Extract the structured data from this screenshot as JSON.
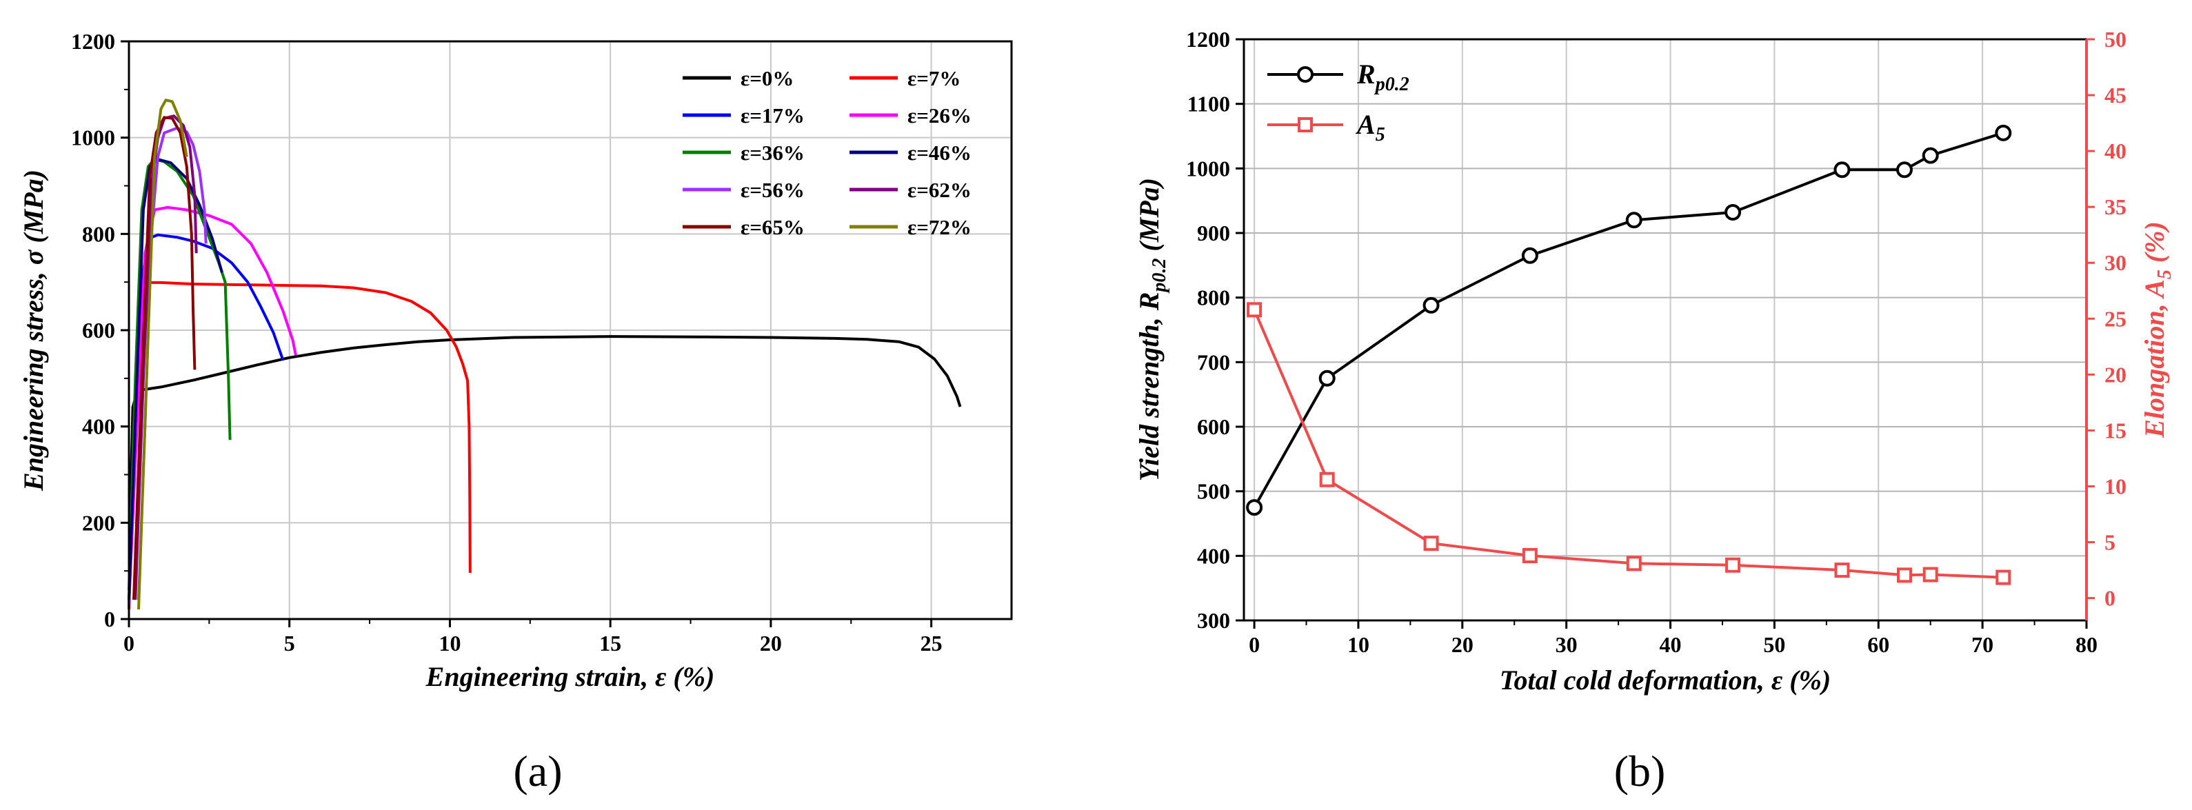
{
  "chart_data": [
    {
      "panel": "a",
      "panel_label": "(a)",
      "type": "line",
      "title": "",
      "xlabel": "Engineering strain, ε (%)",
      "ylabel": "Engineering stress, σ (MPa)",
      "xlim": [
        0,
        27.5
      ],
      "ylim": [
        0,
        1200
      ],
      "xticks": [
        0,
        5,
        10,
        15,
        20,
        25
      ],
      "yticks": [
        0,
        200,
        400,
        600,
        800,
        1000,
        1200
      ],
      "grid": true,
      "legend_position": "top-right",
      "series": [
        {
          "name": "ε=0%",
          "color": "#000000",
          "points": [
            [
              0,
              20
            ],
            [
              0.05,
              250
            ],
            [
              0.12,
              440
            ],
            [
              0.25,
              470
            ],
            [
              0.4,
              476
            ],
            [
              1,
              482
            ],
            [
              2,
              496
            ],
            [
              3,
              512
            ],
            [
              4,
              528
            ],
            [
              5,
              543
            ],
            [
              6,
              554
            ],
            [
              7,
              563
            ],
            [
              8,
              570
            ],
            [
              9,
              576
            ],
            [
              10,
              580
            ],
            [
              12,
              585
            ],
            [
              15,
              587
            ],
            [
              18,
              586
            ],
            [
              20,
              585
            ],
            [
              22,
              583
            ],
            [
              23,
              581
            ],
            [
              24,
              576
            ],
            [
              24.6,
              565
            ],
            [
              25.1,
              540
            ],
            [
              25.5,
              505
            ],
            [
              25.8,
              462
            ],
            [
              25.9,
              441
            ]
          ]
        },
        {
          "name": "ε=7%",
          "color": "#ff0000",
          "points": [
            [
              0,
              20
            ],
            [
              0.15,
              400
            ],
            [
              0.3,
              640
            ],
            [
              0.5,
              699
            ],
            [
              1,
              699
            ],
            [
              2,
              696
            ],
            [
              3,
              695
            ],
            [
              4,
              694
            ],
            [
              5,
              693
            ],
            [
              6,
              692
            ],
            [
              7,
              688
            ],
            [
              8,
              678
            ],
            [
              8.8,
              660
            ],
            [
              9.4,
              636
            ],
            [
              9.9,
              600
            ],
            [
              10.2,
              565
            ],
            [
              10.4,
              530
            ],
            [
              10.55,
              495
            ],
            [
              10.6,
              400
            ],
            [
              10.62,
              250
            ],
            [
              10.63,
              96
            ]
          ]
        },
        {
          "name": "ε=17%",
          "color": "#0000ff",
          "points": [
            [
              0,
              30
            ],
            [
              0.2,
              400
            ],
            [
              0.4,
              700
            ],
            [
              0.6,
              790
            ],
            [
              0.9,
              798
            ],
            [
              1.5,
              793
            ],
            [
              2,
              785
            ],
            [
              2.6,
              770
            ],
            [
              3.2,
              740
            ],
            [
              3.7,
              700
            ],
            [
              4.1,
              650
            ],
            [
              4.5,
              595
            ],
            [
              4.8,
              538
            ]
          ]
        },
        {
          "name": "ε=26%",
          "color": "#ff00ff",
          "points": [
            [
              0,
              30
            ],
            [
              0.25,
              400
            ],
            [
              0.5,
              760
            ],
            [
              0.8,
              850
            ],
            [
              1.2,
              855
            ],
            [
              1.8,
              850
            ],
            [
              2.5,
              838
            ],
            [
              3.2,
              820
            ],
            [
              3.8,
              780
            ],
            [
              4.3,
              720
            ],
            [
              4.8,
              640
            ],
            [
              5.1,
              580
            ],
            [
              5.2,
              548
            ]
          ]
        },
        {
          "name": "ε=36%",
          "color": "#008000",
          "points": [
            [
              0,
              60
            ],
            [
              0.2,
              500
            ],
            [
              0.4,
              850
            ],
            [
              0.6,
              940
            ],
            [
              0.8,
              955
            ],
            [
              1.1,
              950
            ],
            [
              1.5,
              930
            ],
            [
              2,
              880
            ],
            [
              2.4,
              810
            ],
            [
              2.8,
              740
            ],
            [
              3.0,
              700
            ],
            [
              3.1,
              500
            ],
            [
              3.15,
              372
            ]
          ]
        },
        {
          "name": "ε=46%",
          "color": "#000080",
          "points": [
            [
              0,
              40
            ],
            [
              0.25,
              500
            ],
            [
              0.45,
              850
            ],
            [
              0.65,
              940
            ],
            [
              0.9,
              955
            ],
            [
              1.3,
              948
            ],
            [
              1.8,
              915
            ],
            [
              2.2,
              860
            ],
            [
              2.6,
              790
            ],
            [
              2.9,
              720
            ]
          ]
        },
        {
          "name": "ε=56%",
          "color": "#9b30ff",
          "points": [
            [
              0.3,
              40
            ],
            [
              0.5,
              400
            ],
            [
              0.7,
              800
            ],
            [
              0.9,
              960
            ],
            [
              1.1,
              1010
            ],
            [
              1.5,
              1020
            ],
            [
              1.8,
              1012
            ],
            [
              2.0,
              985
            ],
            [
              2.2,
              930
            ],
            [
              2.35,
              850
            ],
            [
              2.4,
              780
            ]
          ]
        },
        {
          "name": "ε=62%",
          "color": "#800080",
          "points": [
            [
              0.2,
              40
            ],
            [
              0.45,
              500
            ],
            [
              0.7,
              900
            ],
            [
              0.9,
              1000
            ],
            [
              1.1,
              1040
            ],
            [
              1.4,
              1045
            ],
            [
              1.7,
              1025
            ],
            [
              1.9,
              980
            ],
            [
              2.05,
              880
            ],
            [
              2.1,
              760
            ]
          ]
        },
        {
          "name": "ε=65%",
          "color": "#8b0000",
          "points": [
            [
              0.15,
              40
            ],
            [
              0.4,
              500
            ],
            [
              0.65,
              920
            ],
            [
              0.85,
              1010
            ],
            [
              1.1,
              1042
            ],
            [
              1.35,
              1040
            ],
            [
              1.6,
              1010
            ],
            [
              1.8,
              940
            ],
            [
              1.95,
              800
            ],
            [
              2.0,
              640
            ],
            [
              2.05,
              518
            ]
          ]
        },
        {
          "name": "ε=72%",
          "color": "#808000",
          "points": [
            [
              0.3,
              20
            ],
            [
              0.55,
              500
            ],
            [
              0.8,
              960
            ],
            [
              1.0,
              1060
            ],
            [
              1.15,
              1078
            ],
            [
              1.35,
              1075
            ],
            [
              1.6,
              1035
            ],
            [
              1.8,
              960
            ]
          ]
        }
      ]
    },
    {
      "panel": "b",
      "panel_label": "(b)",
      "type": "line",
      "title": "",
      "xlabel": "Total cold deformation, ε (%)",
      "ylabel_left": "Yield strength, R",
      "ylabel_left_sub": "p0.2",
      "ylabel_left_unit": " (MPa)",
      "ylabel_right": "Elongation, A",
      "ylabel_right_sub": "5",
      "ylabel_right_unit": " (%)",
      "xlim": [
        -1,
        80
      ],
      "ylim_left": [
        300,
        1200
      ],
      "ylim_right": [
        -2,
        50
      ],
      "xticks": [
        0,
        10,
        20,
        30,
        40,
        50,
        60,
        70,
        80
      ],
      "yticks_left": [
        300,
        400,
        500,
        600,
        700,
        800,
        900,
        1000,
        1100,
        1200
      ],
      "yticks_right": [
        0,
        5,
        10,
        15,
        20,
        25,
        30,
        35,
        40,
        45,
        50
      ],
      "grid": true,
      "legend_position": "top-left",
      "series": [
        {
          "name": "R",
          "name_sub": "p0.2",
          "axis": "left",
          "marker": "circle",
          "color": "#000000",
          "x": [
            0,
            7,
            17,
            26.5,
            36.5,
            46,
            56.5,
            62.5,
            65,
            72
          ],
          "y": [
            475,
            675,
            788,
            865,
            920,
            932,
            998,
            998,
            1020,
            1055
          ]
        },
        {
          "name": "A",
          "name_sub": "5",
          "axis": "right",
          "marker": "square",
          "color": "#f04a4a",
          "x": [
            0,
            7,
            17,
            26.5,
            36.5,
            46,
            56.5,
            62.5,
            65,
            72
          ],
          "y": [
            25.8,
            10.6,
            4.9,
            3.8,
            3.1,
            2.95,
            2.5,
            2.05,
            2.1,
            1.85
          ]
        }
      ]
    }
  ]
}
